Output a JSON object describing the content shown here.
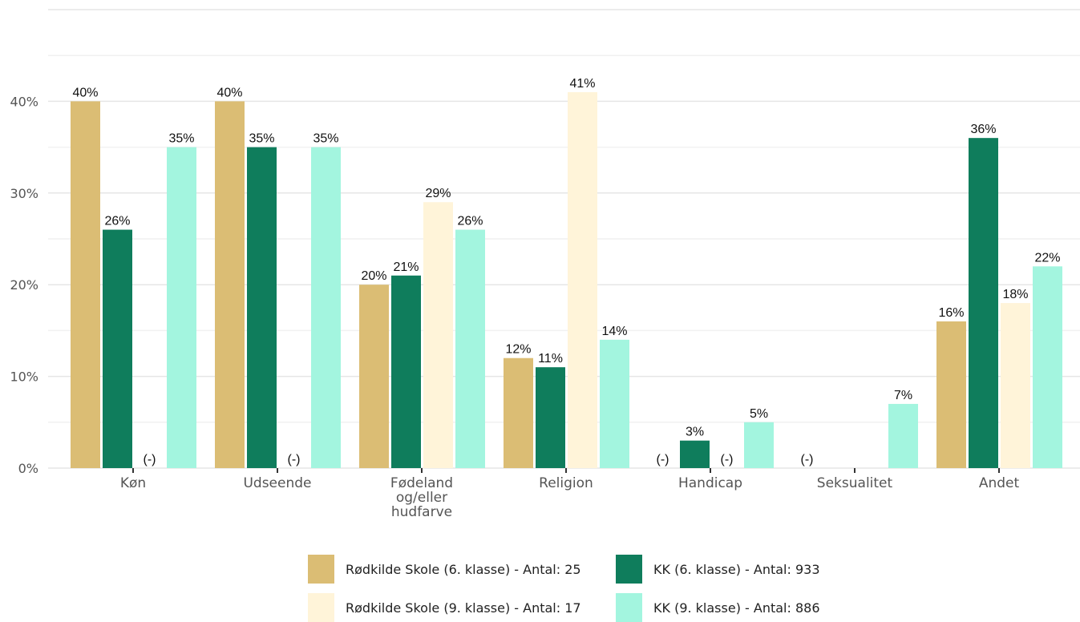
{
  "chart_data": {
    "type": "bar",
    "categories": [
      "Køn",
      "Udseende",
      "Fødeland og/eller hudfarve",
      "Religion",
      "Handicap",
      "Seksualitet",
      "Andet"
    ],
    "category_lines": [
      [
        "Køn"
      ],
      [
        "Udseende"
      ],
      [
        "Fødeland",
        "og/eller",
        "hudfarve"
      ],
      [
        "Religion"
      ],
      [
        "Handicap"
      ],
      [
        "Seksualitet"
      ],
      [
        "Andet"
      ]
    ],
    "series": [
      {
        "name": "Rødkilde Skole (6. klasse) - Antal: 25",
        "color": "#dbbd74",
        "values": [
          40,
          40,
          20,
          12,
          null,
          null,
          16
        ]
      },
      {
        "name": "KK (6. klasse) - Antal: 933",
        "color": "#0f7d5c",
        "values": [
          26,
          35,
          21,
          11,
          3,
          null,
          36
        ]
      },
      {
        "name": "Rødkilde Skole (9. klasse) - Antal: 17",
        "color": "#fff4d9",
        "values": [
          null,
          null,
          29,
          41,
          null,
          null,
          18
        ]
      },
      {
        "name": "KK (9. klasse) - Antal: 886",
        "color": "#a3f5df",
        "values": [
          35,
          35,
          26,
          14,
          5,
          7,
          22
        ]
      }
    ],
    "data_labels": [
      [
        "40%",
        "40%",
        "20%",
        "12%",
        "(-)",
        "(-)",
        "16%"
      ],
      [
        "26%",
        "35%",
        "21%",
        "11%",
        "3%",
        "",
        "36%"
      ],
      [
        "(-)",
        "(-)",
        "29%",
        "41%",
        "(-)",
        "",
        "18%"
      ],
      [
        "35%",
        "35%",
        "26%",
        "14%",
        "5%",
        "7%",
        "22%"
      ]
    ],
    "yticks": [
      "0%",
      "10%",
      "20%",
      "30%",
      "40%"
    ],
    "ytick_values": [
      0,
      10,
      20,
      30,
      40
    ],
    "ylim": [
      0,
      50
    ],
    "grid": true,
    "legend_position": "bottom",
    "title": "",
    "xlabel": "",
    "ylabel": ""
  }
}
